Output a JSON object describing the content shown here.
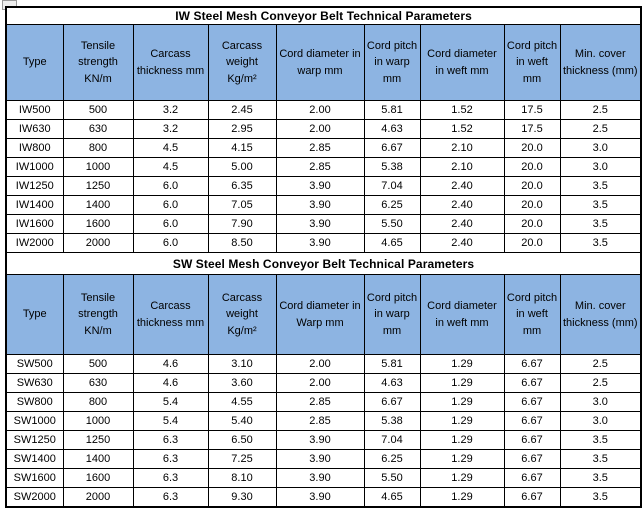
{
  "colors": {
    "page_bg": "#FFFFFF",
    "title_bg": "#FFFFFF",
    "header_bg": "#8DB4E2",
    "border": "#000000",
    "text": "#000000"
  },
  "icons": {
    "top_left_artifact": "image-placeholder-icon"
  },
  "tables": [
    {
      "title": "IW Steel Mesh Conveyor Belt Technical Parameters",
      "columns": [
        "Type",
        "Tensile strength KN/m",
        "Carcass thickness mm",
        "Carcass weight Kg/m²",
        "Cord diameter in warp mm",
        "Cord pitch in warp mm",
        "Cord diameter in weft mm",
        "Cord pitch in weft mm",
        "Min. cover thickness (mm)"
      ],
      "rows": [
        [
          "IW500",
          "500",
          "3.2",
          "2.45",
          "2.00",
          "5.81",
          "1.52",
          "17.5",
          "2.5"
        ],
        [
          "IW630",
          "630",
          "3.2",
          "2.95",
          "2.00",
          "4.63",
          "1.52",
          "17.5",
          "2.5"
        ],
        [
          "IW800",
          "800",
          "4.5",
          "4.15",
          "2.85",
          "6.67",
          "2.10",
          "20.0",
          "3.0"
        ],
        [
          "IW1000",
          "1000",
          "4.5",
          "5.00",
          "2.85",
          "5.38",
          "2.10",
          "20.0",
          "3.0"
        ],
        [
          "IW1250",
          "1250",
          "6.0",
          "6.35",
          "3.90",
          "7.04",
          "2.40",
          "20.0",
          "3.5"
        ],
        [
          "IW1400",
          "1400",
          "6.0",
          "7.05",
          "3.90",
          "6.25",
          "2.40",
          "20.0",
          "3.5"
        ],
        [
          "IW1600",
          "1600",
          "6.0",
          "7.90",
          "3.90",
          "5.50",
          "2.40",
          "20.0",
          "3.5"
        ],
        [
          "IW2000",
          "2000",
          "6.0",
          "8.50",
          "3.90",
          "4.65",
          "2.40",
          "20.0",
          "3.5"
        ]
      ]
    },
    {
      "title": "SW Steel Mesh Conveyor Belt Technical Parameters",
      "columns": [
        "Type",
        "Tensile strength KN/m",
        "Carcass thickness mm",
        "Carcass weight Kg/m²",
        "Cord diameter in Warp mm",
        "Cord pitch in warp mm",
        "Cord diameter in weft mm",
        "Cord pitch in weft mm",
        "Min. cover thickness (mm)"
      ],
      "rows": [
        [
          "SW500",
          "500",
          "4.6",
          "3.10",
          "2.00",
          "5.81",
          "1.29",
          "6.67",
          "2.5"
        ],
        [
          "SW630",
          "630",
          "4.6",
          "3.60",
          "2.00",
          "4.63",
          "1.29",
          "6.67",
          "2.5"
        ],
        [
          "SW800",
          "800",
          "5.4",
          "4.55",
          "2.85",
          "6.67",
          "1.29",
          "6.67",
          "3.0"
        ],
        [
          "SW1000",
          "1000",
          "5.4",
          "5.40",
          "2.85",
          "5.38",
          "1.29",
          "6.67",
          "3.0"
        ],
        [
          "SW1250",
          "1250",
          "6.3",
          "6.50",
          "3.90",
          "7.04",
          "1.29",
          "6.67",
          "3.5"
        ],
        [
          "SW1400",
          "1400",
          "6.3",
          "7.25",
          "3.90",
          "6.25",
          "1.29",
          "6.67",
          "3.5"
        ],
        [
          "SW1600",
          "1600",
          "6.3",
          "8.10",
          "3.90",
          "5.50",
          "1.29",
          "6.67",
          "3.5"
        ],
        [
          "SW2000",
          "2000",
          "6.3",
          "9.30",
          "3.90",
          "4.65",
          "1.29",
          "6.67",
          "3.5"
        ]
      ]
    }
  ]
}
